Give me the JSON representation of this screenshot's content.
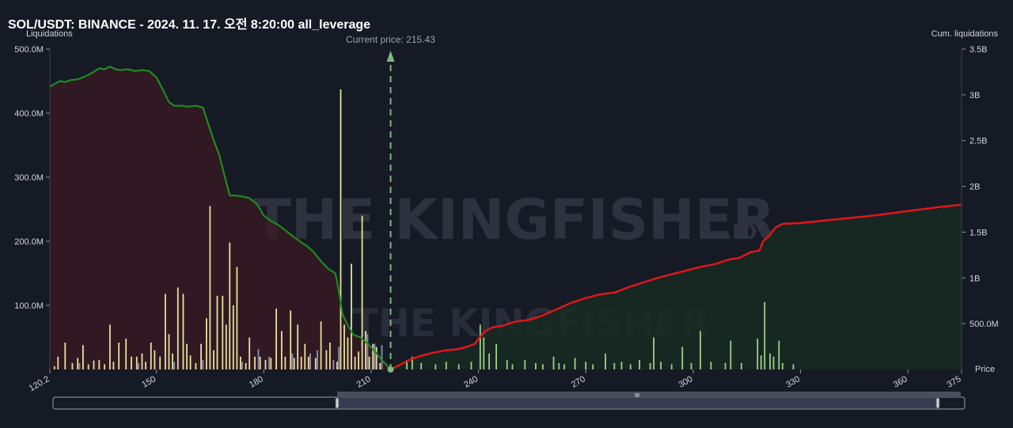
{
  "title": "SOL/USDT: BINANCE - 2024. 11. 17. 오전 8:20:00 all_leverage",
  "watermark": {
    "text": "THE KINGFISHER",
    "suffix": ".IO"
  },
  "colors": {
    "background": "#161a25",
    "long_area_fill": "#3a1a22",
    "short_area_fill": "#172a22",
    "long_cum_line": "#1f8a1f",
    "short_cum_line": "#e0161b",
    "bars": "#e6e19a",
    "bars_secondary": "#8b90b8",
    "bars_right": "#9fd08a",
    "current_price": "#7eb87e"
  },
  "scrollbar": {
    "handle_label": "III"
  },
  "chart_data": {
    "type": "bar",
    "x_axis": {
      "label": "Price",
      "min": 120.2,
      "max": 375,
      "ticks": [
        "120.2",
        "150",
        "180",
        "210",
        "240",
        "270",
        "300",
        "330",
        "360",
        "375"
      ]
    },
    "y_left": {
      "label": "Liquidations",
      "min": 0,
      "max": 500000000,
      "ticks": [
        "100.0M",
        "200.0M",
        "300.0M",
        "400.0M",
        "500.0M"
      ]
    },
    "y_right": {
      "label": "Cum. liquidations",
      "min": 0,
      "max": 3500000000,
      "ticks": [
        "500.0M",
        "1B",
        "1.5B",
        "2B",
        "2.5B",
        "3B",
        "3.5B"
      ]
    },
    "current_price": {
      "label": "Current price: 215.43",
      "value": 215.43
    },
    "bars_left": [
      [
        121.5,
        5
      ],
      [
        122.5,
        20
      ],
      [
        124.5,
        42
      ],
      [
        126.5,
        10
      ],
      [
        128.0,
        18
      ],
      [
        129.5,
        38
      ],
      [
        131.0,
        8
      ],
      [
        132.5,
        14
      ],
      [
        134.0,
        15
      ],
      [
        135.5,
        8
      ],
      [
        137.0,
        70
      ],
      [
        138.0,
        12
      ],
      [
        139.5,
        42
      ],
      [
        141.5,
        48
      ],
      [
        143.0,
        20
      ],
      [
        144.5,
        20
      ],
      [
        146.0,
        25
      ],
      [
        147.0,
        12
      ],
      [
        148.5,
        42
      ],
      [
        149.5,
        30
      ],
      [
        151.0,
        20
      ],
      [
        152.5,
        118
      ],
      [
        153.5,
        55
      ],
      [
        154.5,
        25
      ],
      [
        156.0,
        128
      ],
      [
        157.5,
        118
      ],
      [
        158.5,
        40
      ],
      [
        159.5,
        22
      ],
      [
        161.0,
        10
      ],
      [
        162.5,
        40
      ],
      [
        164.0,
        80
      ],
      [
        165.0,
        255
      ],
      [
        166.0,
        30
      ],
      [
        167.0,
        115
      ],
      [
        168.5,
        115
      ],
      [
        169.5,
        70
      ],
      [
        170.5,
        198
      ],
      [
        171.5,
        100
      ],
      [
        172.5,
        160
      ],
      [
        173.5,
        20
      ],
      [
        175.0,
        10
      ],
      [
        176.0,
        50
      ],
      [
        177.5,
        20
      ],
      [
        179.0,
        20
      ],
      [
        180.5,
        15
      ],
      [
        182.0,
        18
      ],
      [
        183.5,
        95
      ],
      [
        185.0,
        60
      ],
      [
        186.0,
        20
      ],
      [
        187.5,
        92
      ],
      [
        188.5,
        18
      ],
      [
        189.5,
        70
      ],
      [
        190.5,
        20
      ],
      [
        191.5,
        40
      ],
      [
        192.5,
        20
      ],
      [
        194.5,
        18
      ],
      [
        196.0,
        75
      ],
      [
        197.5,
        30
      ],
      [
        198.5,
        42
      ],
      [
        200.5,
        12
      ],
      [
        201.5,
        437
      ],
      [
        202.5,
        70
      ],
      [
        203.5,
        50
      ],
      [
        204.5,
        165
      ],
      [
        205.5,
        20
      ],
      [
        206.5,
        28
      ],
      [
        207.5,
        240
      ],
      [
        208.5,
        60
      ],
      [
        209.5,
        20
      ],
      [
        210.5,
        40
      ],
      [
        211.5,
        35
      ],
      [
        212.5,
        10
      ]
    ],
    "bars_left_secondary": [
      [
        128.5,
        10
      ],
      [
        145.0,
        10
      ],
      [
        155.0,
        12
      ],
      [
        163.0,
        15
      ],
      [
        174.0,
        12
      ],
      [
        178.5,
        32
      ],
      [
        181.5,
        20
      ],
      [
        188.0,
        25
      ],
      [
        193.0,
        25
      ],
      [
        195.0,
        30
      ],
      [
        199.5,
        15
      ],
      [
        201.0,
        35
      ],
      [
        209.0,
        55
      ],
      [
        211.0,
        40
      ],
      [
        213.0,
        38
      ]
    ],
    "bars_right": [
      [
        220.0,
        15
      ],
      [
        221.5,
        20
      ],
      [
        224.0,
        10
      ],
      [
        228.0,
        8
      ],
      [
        231.0,
        12
      ],
      [
        234.5,
        8
      ],
      [
        238.0,
        12
      ],
      [
        240.5,
        70
      ],
      [
        241.5,
        50
      ],
      [
        243.0,
        25
      ],
      [
        245.0,
        40
      ],
      [
        248.0,
        15
      ],
      [
        249.5,
        8
      ],
      [
        253.0,
        15
      ],
      [
        256.0,
        10
      ],
      [
        258.0,
        8
      ],
      [
        261.0,
        20
      ],
      [
        262.5,
        10
      ],
      [
        264.0,
        8
      ],
      [
        267.0,
        18
      ],
      [
        270.0,
        12
      ],
      [
        272.0,
        8
      ],
      [
        275.5,
        25
      ],
      [
        278.0,
        10
      ],
      [
        280.0,
        12
      ],
      [
        282.5,
        8
      ],
      [
        285.0,
        15
      ],
      [
        288.0,
        10
      ],
      [
        289.0,
        50
      ],
      [
        291.0,
        12
      ],
      [
        294.0,
        8
      ],
      [
        297.0,
        35
      ],
      [
        299.5,
        10
      ],
      [
        302.0,
        60
      ],
      [
        305.0,
        12
      ],
      [
        309.0,
        10
      ],
      [
        310.5,
        45
      ],
      [
        313.5,
        10
      ],
      [
        318.0,
        48
      ],
      [
        319.0,
        22
      ],
      [
        320.0,
        105
      ],
      [
        321.5,
        25
      ],
      [
        322.5,
        20
      ],
      [
        324.0,
        45
      ],
      [
        325.0,
        10
      ],
      [
        328.0,
        8
      ]
    ],
    "cum_long": [
      [
        120.2,
        3.09
      ],
      [
        121.5,
        3.12
      ],
      [
        123.0,
        3.15
      ],
      [
        124.5,
        3.14
      ],
      [
        126.0,
        3.16
      ],
      [
        128.0,
        3.17
      ],
      [
        130.0,
        3.2
      ],
      [
        132.0,
        3.24
      ],
      [
        134.0,
        3.29
      ],
      [
        135.5,
        3.28
      ],
      [
        137.0,
        3.31
      ],
      [
        138.5,
        3.28
      ],
      [
        140.0,
        3.27
      ],
      [
        142.0,
        3.28
      ],
      [
        144.0,
        3.26
      ],
      [
        146.0,
        3.27
      ],
      [
        148.0,
        3.26
      ],
      [
        150.0,
        3.19
      ],
      [
        152.0,
        3.04
      ],
      [
        153.5,
        2.92
      ],
      [
        155.0,
        2.88
      ],
      [
        157.0,
        2.88
      ],
      [
        159.0,
        2.87
      ],
      [
        161.0,
        2.88
      ],
      [
        163.0,
        2.86
      ],
      [
        164.5,
        2.68
      ],
      [
        166.0,
        2.5
      ],
      [
        167.5,
        2.35
      ],
      [
        169.0,
        2.12
      ],
      [
        170.5,
        1.9
      ],
      [
        172.0,
        1.9
      ],
      [
        174.0,
        1.89
      ],
      [
        176.0,
        1.87
      ],
      [
        178.0,
        1.81
      ],
      [
        180.0,
        1.68
      ],
      [
        182.0,
        1.62
      ],
      [
        184.0,
        1.58
      ],
      [
        186.0,
        1.52
      ],
      [
        188.0,
        1.46
      ],
      [
        190.0,
        1.4
      ],
      [
        192.0,
        1.35
      ],
      [
        194.0,
        1.28
      ],
      [
        196.0,
        1.18
      ],
      [
        198.0,
        1.1
      ],
      [
        200.0,
        1.05
      ],
      [
        201.0,
        0.85
      ],
      [
        202.0,
        0.6
      ],
      [
        203.5,
        0.48
      ],
      [
        205.0,
        0.38
      ],
      [
        207.0,
        0.35
      ],
      [
        209.0,
        0.28
      ],
      [
        211.0,
        0.2
      ],
      [
        213.0,
        0.1
      ],
      [
        214.5,
        0.04
      ],
      [
        215.43,
        0.0
      ]
    ],
    "cum_short": [
      [
        215.43,
        0.0
      ],
      [
        218.0,
        0.05
      ],
      [
        221.0,
        0.11
      ],
      [
        224.0,
        0.15
      ],
      [
        227.0,
        0.18
      ],
      [
        231.0,
        0.21
      ],
      [
        234.0,
        0.22
      ],
      [
        237.0,
        0.25
      ],
      [
        239.0,
        0.28
      ],
      [
        240.5,
        0.36
      ],
      [
        242.0,
        0.42
      ],
      [
        244.0,
        0.46
      ],
      [
        247.0,
        0.48
      ],
      [
        250.0,
        0.52
      ],
      [
        254.0,
        0.54
      ],
      [
        258.0,
        0.59
      ],
      [
        262.0,
        0.66
      ],
      [
        266.0,
        0.73
      ],
      [
        270.0,
        0.78
      ],
      [
        274.0,
        0.82
      ],
      [
        278.0,
        0.84
      ],
      [
        282.0,
        0.9
      ],
      [
        286.0,
        0.95
      ],
      [
        290.0,
        1.0
      ],
      [
        294.0,
        1.04
      ],
      [
        298.0,
        1.08
      ],
      [
        302.0,
        1.12
      ],
      [
        306.0,
        1.15
      ],
      [
        310.0,
        1.2
      ],
      [
        313.0,
        1.22
      ],
      [
        316.0,
        1.28
      ],
      [
        318.5,
        1.3
      ],
      [
        319.5,
        1.4
      ],
      [
        321.0,
        1.45
      ],
      [
        323.0,
        1.55
      ],
      [
        325.0,
        1.59
      ],
      [
        330.0,
        1.6
      ],
      [
        340.0,
        1.64
      ],
      [
        350.0,
        1.68
      ],
      [
        360.0,
        1.73
      ],
      [
        370.0,
        1.78
      ],
      [
        375.0,
        1.8
      ]
    ]
  }
}
